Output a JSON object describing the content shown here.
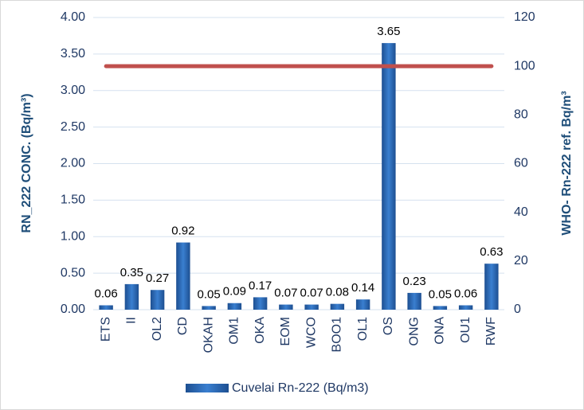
{
  "chart_data": {
    "type": "bar",
    "y_label": "RN_222  CONC. (Bq/m³)",
    "y2_label": "WHO- Rn-222 ref. Bq/m³",
    "categories": [
      "ETS",
      "II",
      "OL2",
      "CD",
      "OKAH",
      "OM1",
      "OKA",
      "EOM",
      "WCO",
      "BOO1",
      "OL1",
      "OS",
      "ONG",
      "ONA",
      "OU1",
      "RWF"
    ],
    "series": [
      {
        "name": "Cuvelai Rn-222  (Bq/m3)",
        "color": "#2e6cb5",
        "values": [
          0.06,
          0.35,
          0.27,
          0.92,
          0.05,
          0.09,
          0.17,
          0.07,
          0.07,
          0.08,
          0.14,
          3.65,
          0.23,
          0.05,
          0.06,
          0.63
        ]
      },
      {
        "type": "line",
        "axis": "y2",
        "color": "#c0504d",
        "values": [
          100,
          100,
          100,
          100,
          100,
          100,
          100,
          100,
          100,
          100,
          100,
          100,
          100,
          100,
          100,
          100
        ]
      }
    ],
    "ylim": [
      0,
      4
    ],
    "yticks": [
      {
        "value": 0,
        "label": "0.00"
      },
      {
        "value": 0.5,
        "label": "0.50"
      },
      {
        "value": 1,
        "label": "1.00"
      },
      {
        "value": 1.5,
        "label": "1.50"
      },
      {
        "value": 2,
        "label": "2.00"
      },
      {
        "value": 2.5,
        "label": "2.50"
      },
      {
        "value": 3,
        "label": "3.00"
      },
      {
        "value": 3.5,
        "label": "3.50"
      },
      {
        "value": 4,
        "label": "4.00"
      }
    ],
    "y2lim": [
      0,
      120
    ],
    "y2ticks": [
      0,
      20,
      40,
      60,
      80,
      100,
      120
    ],
    "grid": true,
    "legend": "bottom"
  }
}
